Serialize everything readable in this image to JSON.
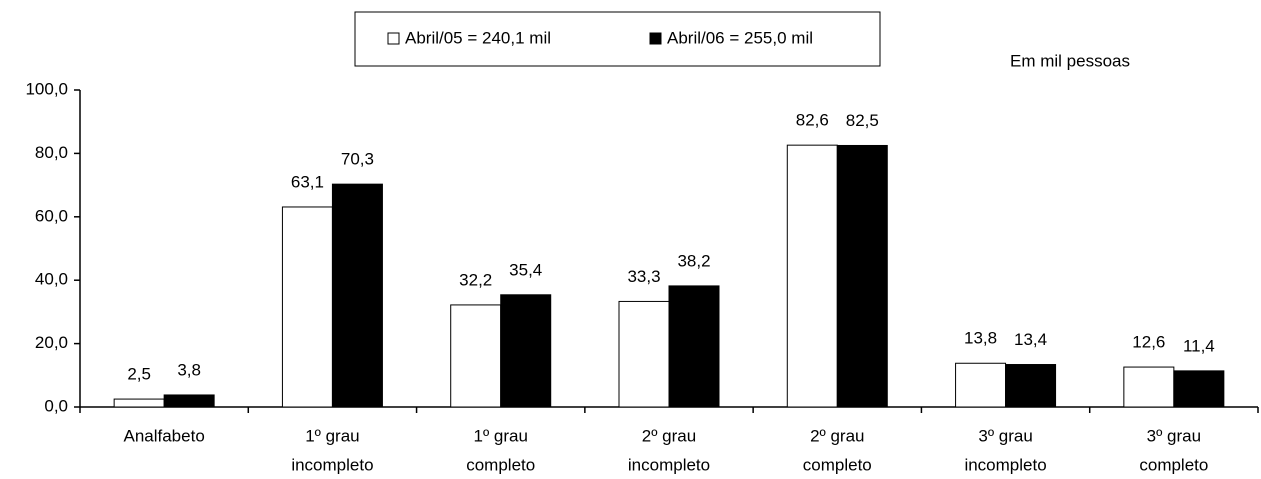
{
  "chart_data": {
    "type": "bar",
    "note": "Em mil pessoas",
    "categories": [
      [
        "Analfabeto"
      ],
      [
        "1º grau",
        "incompleto"
      ],
      [
        "1º grau",
        "completo"
      ],
      [
        "2º grau",
        "incompleto"
      ],
      [
        "2º grau",
        "completo"
      ],
      [
        "3º grau",
        "incompleto"
      ],
      [
        "3º grau",
        "completo"
      ]
    ],
    "series": [
      {
        "name": "Abril/05 = 240,1 mil",
        "color": "#ffffff",
        "values": [
          2.5,
          63.1,
          32.2,
          33.3,
          82.6,
          13.8,
          12.6
        ],
        "value_labels": [
          "2,5",
          "63,1",
          "32,2",
          "33,3",
          "82,6",
          "13,8",
          "12,6"
        ]
      },
      {
        "name": "Abril/06 = 255,0 mil",
        "color": "#000000",
        "values": [
          3.8,
          70.3,
          35.4,
          38.2,
          82.5,
          13.4,
          11.4
        ],
        "value_labels": [
          "3,8",
          "70,3",
          "35,4",
          "38,2",
          "82,5",
          "13,4",
          "11,4"
        ]
      }
    ],
    "ylim": [
      0,
      100
    ],
    "yticks": [
      {
        "value": 0,
        "label": "0,0"
      },
      {
        "value": 20,
        "label": "20,0"
      },
      {
        "value": 40,
        "label": "40,0"
      },
      {
        "value": 60,
        "label": "60,0"
      },
      {
        "value": 80,
        "label": "80,0"
      },
      {
        "value": 100,
        "label": "100,0"
      }
    ],
    "legend": "top"
  }
}
